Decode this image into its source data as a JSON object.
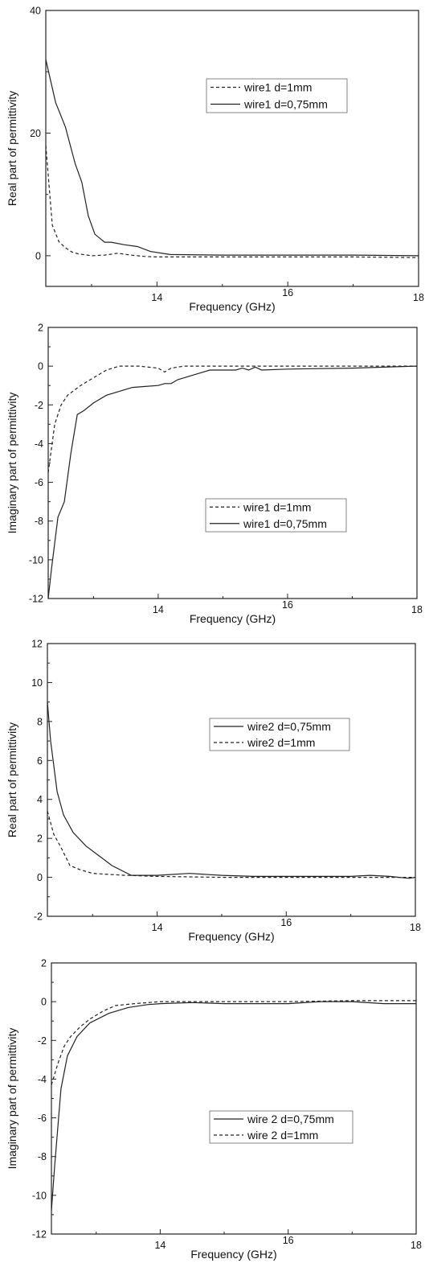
{
  "chart_data": [
    {
      "type": "line",
      "xlabel": "Frequency (GHz)",
      "ylabel": "Real part of permittivity",
      "xlim": [
        12.3,
        18
      ],
      "ylim": [
        -5,
        40
      ],
      "xticks": [
        14,
        16,
        18
      ],
      "yticks": [
        0,
        20,
        40
      ],
      "legend_position": "top-right",
      "series": [
        {
          "name": "wire1 d=1mm",
          "style": "dashed",
          "x": [
            12.3,
            12.4,
            12.5,
            12.6,
            12.7,
            12.8,
            13.0,
            13.2,
            13.4,
            13.6,
            13.8,
            14.0,
            15.0,
            16.0,
            17.0,
            18.0
          ],
          "y": [
            18,
            5,
            2.3,
            1.3,
            0.6,
            0.3,
            0.0,
            0.1,
            0.4,
            0.1,
            -0.1,
            -0.2,
            -0.2,
            -0.2,
            -0.2,
            -0.3
          ]
        },
        {
          "name": "wire1 d=0,75mm",
          "style": "solid",
          "x": [
            12.3,
            12.45,
            12.6,
            12.75,
            12.85,
            12.95,
            13.05,
            13.2,
            13.3,
            13.5,
            13.7,
            13.9,
            14.2,
            15.0,
            16.0,
            17.0,
            18.0
          ],
          "y": [
            32,
            25,
            21,
            15,
            12,
            6.5,
            3.5,
            2.2,
            2.2,
            1.8,
            1.5,
            0.7,
            0.2,
            0.1,
            0.1,
            0.1,
            0.0
          ]
        }
      ]
    },
    {
      "type": "line",
      "xlabel": "Frequency (GHz)",
      "ylabel": "Imaginary part of permittivity",
      "xlim": [
        12.3,
        18
      ],
      "ylim": [
        -12,
        2
      ],
      "xticks": [
        14,
        16,
        18
      ],
      "yticks": [
        -12,
        -10,
        -8,
        -6,
        -4,
        -2,
        0,
        2
      ],
      "legend_position": "center-right",
      "series": [
        {
          "name": "wire1 d=1mm",
          "style": "dashed",
          "x": [
            12.3,
            12.4,
            12.5,
            12.6,
            12.8,
            13.0,
            13.2,
            13.4,
            13.7,
            14.0,
            14.1,
            14.2,
            14.4,
            15.0,
            16.0,
            17.0,
            18.0
          ],
          "y": [
            -5.5,
            -3,
            -2,
            -1.5,
            -1,
            -0.6,
            -0.2,
            0,
            0,
            -0.1,
            -0.3,
            -0.1,
            0,
            0,
            0,
            0,
            0
          ]
        },
        {
          "name": "wire1 d=0,75mm",
          "style": "solid",
          "x": [
            12.3,
            12.35,
            12.45,
            12.55,
            12.65,
            12.75,
            12.85,
            13.0,
            13.2,
            13.4,
            13.6,
            13.8,
            14.0,
            14.1,
            14.2,
            14.3,
            14.5,
            14.8,
            15.2,
            15.3,
            15.4,
            15.5,
            15.6,
            16.0,
            17.0,
            18.0
          ],
          "y": [
            -12,
            -10.5,
            -7.8,
            -7,
            -4.5,
            -2.5,
            -2.3,
            -1.9,
            -1.5,
            -1.3,
            -1.1,
            -1.05,
            -1.0,
            -0.9,
            -0.9,
            -0.7,
            -0.5,
            -0.2,
            -0.2,
            -0.1,
            -0.2,
            -0.05,
            -0.2,
            -0.15,
            -0.1,
            0.0
          ]
        }
      ]
    },
    {
      "type": "line",
      "xlabel": "Frequency (GHz)",
      "ylabel": "Real part of permittivity",
      "xlim": [
        12.3,
        18
      ],
      "ylim": [
        -2,
        12
      ],
      "xticks": [
        14,
        16,
        18
      ],
      "yticks": [
        -2,
        0,
        2,
        4,
        6,
        8,
        10,
        12
      ],
      "legend_position": "top-right",
      "series": [
        {
          "name": "wire2 d=0,75mm",
          "style": "solid",
          "x": [
            12.3,
            12.35,
            12.45,
            12.55,
            12.7,
            12.9,
            13.1,
            13.3,
            13.6,
            14.0,
            14.5,
            15.0,
            15.5,
            16.0,
            16.5,
            17.0,
            17.3,
            17.6,
            17.9,
            18.0
          ],
          "y": [
            9.0,
            7.0,
            4.4,
            3.2,
            2.3,
            1.6,
            1.1,
            0.6,
            0.1,
            0.1,
            0.2,
            0.1,
            0.05,
            0.05,
            0.05,
            0.05,
            0.1,
            0.05,
            -0.05,
            0.0
          ]
        },
        {
          "name": "wire2 d=1mm",
          "style": "dashed",
          "x": [
            12.3,
            12.4,
            12.5,
            12.65,
            12.8,
            13.0,
            13.5,
            14.0,
            15.0,
            16.0,
            17.0,
            18.0
          ],
          "y": [
            3.4,
            2.2,
            1.6,
            0.6,
            0.4,
            0.2,
            0.1,
            0.05,
            0.0,
            0.0,
            0.0,
            0.0
          ]
        }
      ]
    },
    {
      "type": "line",
      "xlabel": "Frequency (GHz)",
      "ylabel": "Imaginary part of permittivity",
      "xlim": [
        12.3,
        18
      ],
      "ylim": [
        -12,
        2
      ],
      "xticks": [
        14,
        16,
        18
      ],
      "yticks": [
        -12,
        -10,
        -8,
        -6,
        -4,
        -2,
        0,
        2
      ],
      "legend_position": "center-right",
      "series": [
        {
          "name": "wire 2 d=0,75mm",
          "style": "solid",
          "x": [
            12.3,
            12.35,
            12.45,
            12.55,
            12.7,
            12.9,
            13.2,
            13.5,
            13.8,
            14.0,
            14.5,
            15.0,
            15.5,
            16.0,
            16.5,
            17.0,
            17.5,
            18.0
          ],
          "y": [
            -10.8,
            -8.5,
            -4.5,
            -2.8,
            -1.8,
            -1.1,
            -0.6,
            -0.3,
            -0.15,
            -0.1,
            -0.05,
            -0.1,
            -0.1,
            -0.1,
            0.0,
            0.0,
            -0.1,
            -0.1
          ]
        },
        {
          "name": "wire 2 d=1mm",
          "style": "dashed",
          "x": [
            12.3,
            12.4,
            12.5,
            12.6,
            12.75,
            12.9,
            13.1,
            13.3,
            13.6,
            14.0,
            15.0,
            16.0,
            17.0,
            18.0
          ],
          "y": [
            -4.3,
            -3.2,
            -2.3,
            -1.8,
            -1.3,
            -0.9,
            -0.5,
            -0.2,
            -0.1,
            0.0,
            0.0,
            0.0,
            0.05,
            0.05
          ]
        }
      ]
    }
  ]
}
